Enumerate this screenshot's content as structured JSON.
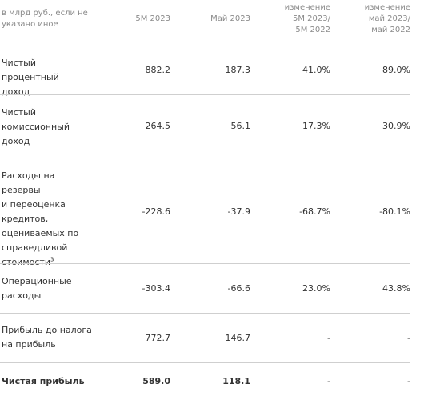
{
  "header": {
    "unit": "в млрд руб., если не указано иное",
    "col1": "5М 2023",
    "col2": "Май 2023",
    "col3_line1": "изменение",
    "col3_line2": "5М 2023/",
    "col3_line3": "5М 2022",
    "col4_line1": "изменение",
    "col4_line2": "май 2023/",
    "col4_line3": "май 2022"
  },
  "rows": [
    {
      "label_lines": [
        "Чистый процентный",
        "доход"
      ],
      "values": [
        "882.2",
        "187.3",
        "41.0%",
        "89.0%"
      ]
    },
    {
      "label_lines": [
        "Чистый",
        "комиссионный",
        "доход"
      ],
      "values": [
        "264.5",
        "56.1",
        "17.3%",
        "30.9%"
      ]
    },
    {
      "label_lines": [
        "Расходы на резервы",
        "и переоценка",
        "кредитов,",
        "оцениваемых по",
        "справедливой",
        "стоимости"
      ],
      "footnote": "3",
      "values": [
        "-228.6",
        "-37.9",
        "-68.7%",
        "-80.1%"
      ]
    },
    {
      "label_lines": [
        "Операционные",
        "расходы"
      ],
      "values": [
        "-303.4",
        "-66.6",
        "23.0%",
        "43.8%"
      ]
    },
    {
      "label_lines": [
        "Прибыль до налога",
        "на прибыль"
      ],
      "values": [
        "772.7",
        "146.7",
        "-",
        "-"
      ]
    },
    {
      "label_lines": [
        "Чистая прибыль"
      ],
      "values": [
        "589.0",
        "118.1",
        "-",
        "-"
      ]
    }
  ]
}
